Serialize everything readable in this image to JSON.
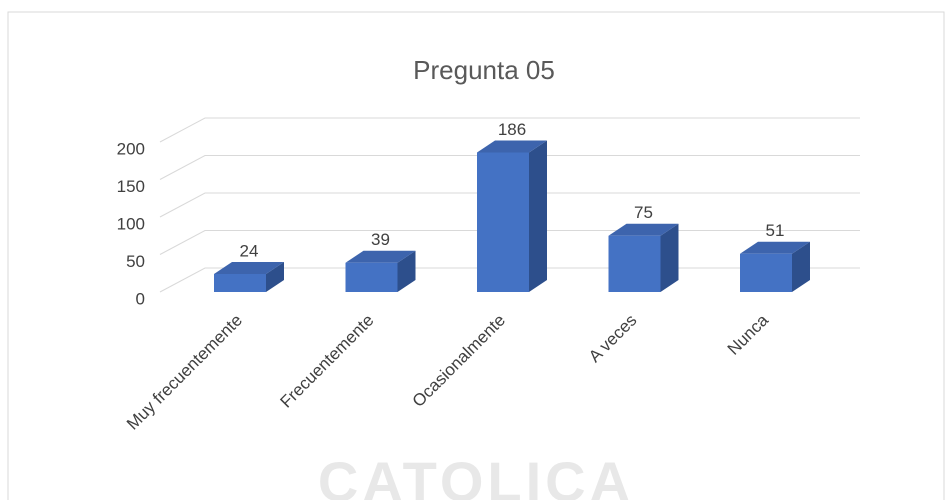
{
  "chart_data": {
    "type": "bar3d",
    "title": "Pregunta 05",
    "categories": [
      "Muy frecuentemente",
      "Frecuentemente",
      "Ocasionalmente",
      "A veces",
      "Nunca"
    ],
    "values": [
      24,
      39,
      186,
      75,
      51
    ],
    "color": "#4472c4",
    "ylim": [
      0,
      200
    ],
    "yticks": [
      0,
      50,
      100,
      150,
      200
    ],
    "grid": true,
    "watermark": "CATOLICA"
  }
}
